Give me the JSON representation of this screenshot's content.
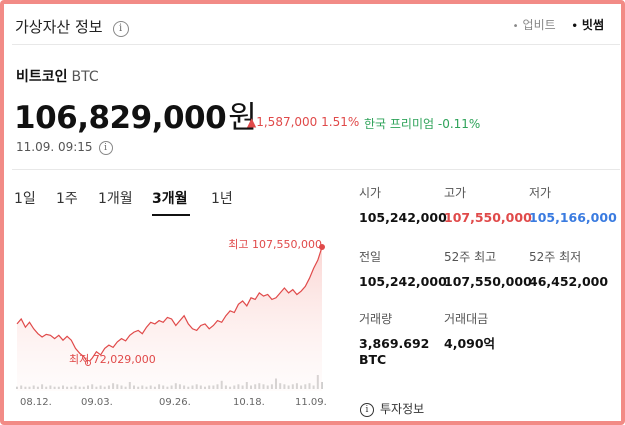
{
  "header": {
    "title": "가상자산 정보",
    "sources": [
      {
        "label": "업비트",
        "active": false
      },
      {
        "label": "빗썸",
        "active": true
      }
    ]
  },
  "coin": {
    "name": "비트코인",
    "symbol": "BTC",
    "price": "106,829,000",
    "unit": "원",
    "change": "▲1,587,000 1.51%",
    "premium": "한국 프리미엄 -0.11%",
    "timestamp": "11.09. 09:15"
  },
  "tabs": [
    "1일",
    "1주",
    "1개월",
    "3개월",
    "1년"
  ],
  "active_tab": "3개월",
  "chart_data": {
    "type": "area",
    "x_ticks": [
      "08.12.",
      "09.03.",
      "09.26.",
      "10.18.",
      "11.09."
    ],
    "high_label": "최고 107,550,000",
    "low_label": "최저 72,029,000",
    "high": 107550000,
    "low": 72029000,
    "series": [
      {
        "values": [
          84000000,
          85500000,
          83000000,
          84500000,
          82500000,
          81000000,
          80000000,
          80800000,
          80500000,
          79500000,
          80500000,
          79000000,
          80200000,
          79000000,
          76500000,
          75000000,
          74000000,
          72029000,
          73500000,
          75500000,
          74500000,
          76500000,
          77500000,
          76800000,
          78500000,
          79500000,
          78800000,
          80500000,
          81500000,
          82000000,
          81000000,
          83000000,
          84500000,
          84000000,
          85000000,
          84500000,
          86000000,
          85500000,
          83500000,
          85000000,
          86500000,
          84000000,
          82500000,
          82000000,
          83500000,
          84000000,
          82500000,
          83500000,
          85000000,
          84500000,
          86500000,
          88000000,
          87500000,
          90000000,
          91000000,
          89500000,
          92000000,
          91500000,
          93500000,
          92500000,
          93000000,
          91500000,
          92000000,
          93500000,
          95000000,
          93500000,
          94500000,
          93000000,
          94000000,
          95500000,
          98000000,
          101000000,
          103500000,
          107550000
        ]
      }
    ],
    "volume": [
      2,
      3,
      2,
      2,
      3,
      2,
      4,
      2,
      3,
      2,
      2,
      3,
      2,
      2,
      3,
      2,
      2,
      3,
      4,
      2,
      3,
      2,
      3,
      5,
      4,
      3,
      2,
      6,
      3,
      2,
      3,
      2,
      3,
      2,
      4,
      3,
      2,
      3,
      5,
      4,
      3,
      2,
      3,
      4,
      3,
      2,
      3,
      3,
      4,
      7,
      3,
      2,
      3,
      4,
      3,
      6,
      3,
      4,
      5,
      4,
      3,
      4,
      9,
      5,
      4,
      3,
      4,
      5,
      3,
      4,
      5,
      3,
      12,
      6
    ]
  },
  "stats": [
    {
      "label": "시가",
      "value": "105,242,000",
      "color": "default"
    },
    {
      "label": "고가",
      "value": "107,550,000",
      "color": "red"
    },
    {
      "label": "저가",
      "value": "105,166,000",
      "color": "blue"
    },
    {
      "label": "전일",
      "value": "105,242,000",
      "color": "default"
    },
    {
      "label": "52주 최고",
      "value": "107,550,000",
      "color": "default"
    },
    {
      "label": "52주 최저",
      "value": "46,452,000",
      "color": "default"
    },
    {
      "label": "거래량",
      "value": "3,869.692 BTC",
      "color": "default"
    },
    {
      "label": "거래대금",
      "value": "4,090억",
      "color": "default"
    }
  ],
  "invest_info": "투자정보",
  "colors": {
    "up": "#e04a4a",
    "down": "#3a7be0",
    "premium": "#2fa35a",
    "frame": "#f28b86"
  }
}
